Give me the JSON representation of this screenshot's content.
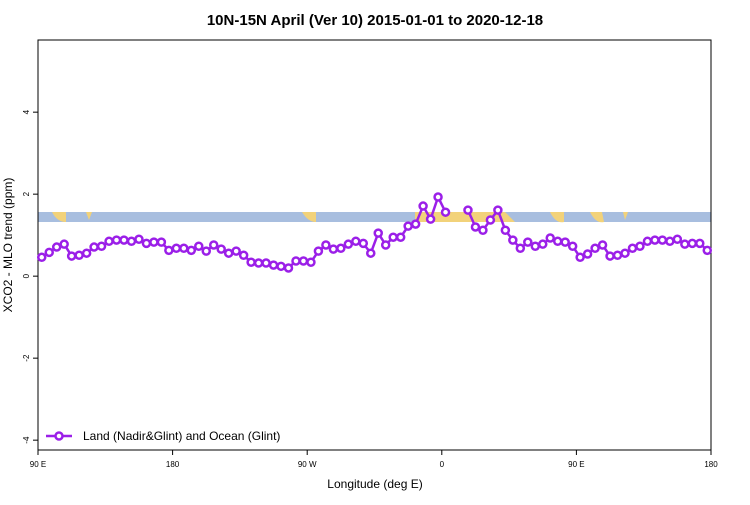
{
  "chart_data": {
    "type": "line",
    "title": "10N-15N April (Ver 10)   2015-01-01 to 2020-12-18",
    "x_label": "Longitude (deg E)",
    "y_label": "XCO2 - MLO trend (ppm)",
    "x": [
      92.5,
      97.5,
      102.5,
      107.5,
      112.5,
      117.5,
      122.5,
      127.5,
      132.5,
      137.5,
      142.5,
      147.5,
      152.5,
      157.5,
      162.5,
      167.5,
      172.5,
      177.5,
      182.5,
      187.5,
      192.5,
      197.5,
      202.5,
      207.5,
      212.5,
      217.5,
      222.5,
      227.5,
      232.5,
      237.5,
      242.5,
      247.5,
      252.5,
      257.5,
      262.5,
      267.5,
      272.5,
      277.5,
      282.5,
      287.5,
      292.5,
      297.5,
      302.5,
      307.5,
      312.5,
      317.5,
      322.5,
      327.5,
      332.5,
      337.5,
      342.5,
      347.5,
      352.5,
      357.5,
      362.5,
      367.5,
      372.5,
      377.5,
      382.5,
      387.5,
      392.5,
      397.5,
      402.5,
      407.5,
      412.5,
      417.5,
      422.5,
      427.5,
      432.5,
      437.5,
      442.5,
      447.5,
      452.5,
      457.5,
      462.5,
      467.5,
      472.5,
      477.5,
      482.5,
      487.5,
      492.5,
      497.5,
      502.5,
      507.5,
      512.5,
      517.5,
      522.5,
      527.5,
      532.5,
      537.5
    ],
    "series": [
      {
        "name": "Land (Nadir&Glint) and Ocean (Glint)",
        "color": "#9b1fe8",
        "values": [
          0.46,
          0.58,
          0.71,
          0.78,
          0.49,
          0.51,
          0.56,
          0.71,
          0.73,
          0.85,
          0.88,
          0.88,
          0.85,
          0.9,
          0.8,
          0.83,
          0.83,
          0.63,
          0.68,
          0.68,
          0.63,
          0.73,
          0.61,
          0.76,
          0.66,
          0.56,
          0.61,
          0.51,
          0.34,
          0.32,
          0.32,
          0.27,
          0.24,
          0.2,
          0.37,
          0.37,
          0.34,
          0.61,
          0.76,
          0.66,
          0.68,
          0.78,
          0.85,
          0.8,
          0.56,
          1.05,
          0.76,
          0.95,
          0.95,
          1.22,
          1.27,
          1.71,
          1.39,
          1.93,
          1.56,
          null,
          null,
          1.61,
          1.2,
          1.12,
          1.37,
          1.61,
          1.12,
          0.88,
          0.68,
          0.83,
          0.73,
          0.78,
          0.93,
          0.85,
          0.83,
          0.73,
          0.46,
          0.54,
          0.68,
          0.76,
          0.49,
          0.51,
          0.56,
          0.68,
          0.73,
          0.85,
          0.88,
          0.88,
          0.85,
          0.9,
          0.78,
          0.8,
          0.8,
          0.63
        ]
      }
    ],
    "xlim": [
      90,
      540
    ],
    "xticks": [
      {
        "value": 90,
        "label": "90 E"
      },
      180,
      {
        "value": 270,
        "label": "90 W"
      },
      {
        "value": 360,
        "label": "0"
      },
      {
        "value": 450,
        "label": "90 E"
      },
      {
        "value": 540,
        "label": "180"
      }
    ],
    "ylim": [
      -4.24,
      5.76
    ],
    "yticks": [
      -4,
      -2,
      0,
      2,
      4
    ],
    "legend": "bottom-left"
  }
}
